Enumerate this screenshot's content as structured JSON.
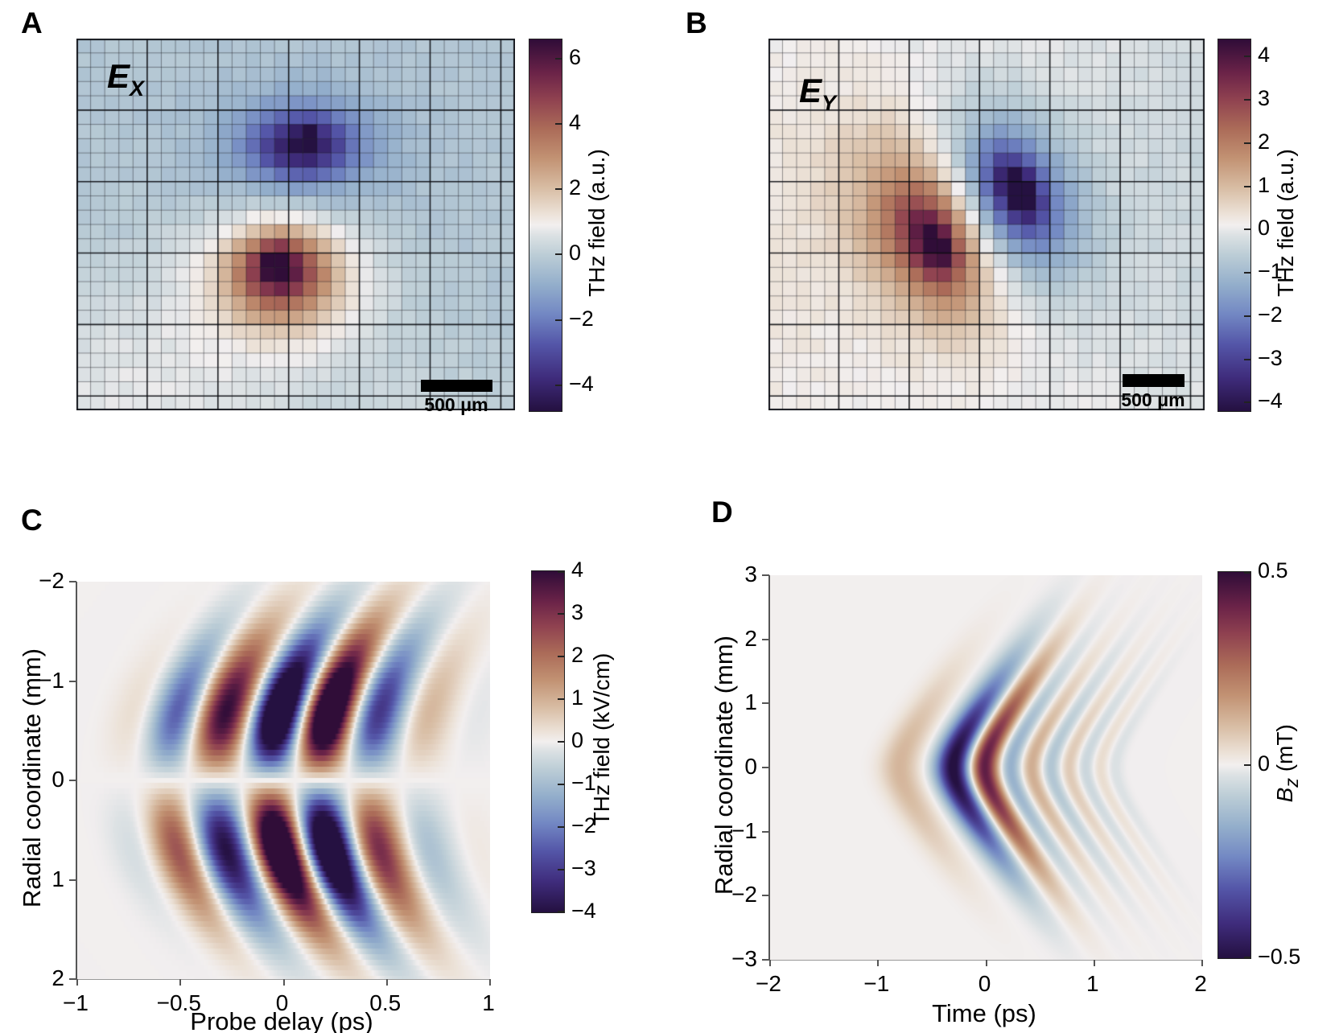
{
  "colormap": {
    "stops": [
      [
        0.0,
        "#241040"
      ],
      [
        0.09,
        "#3f2c7c"
      ],
      [
        0.18,
        "#5456a8"
      ],
      [
        0.26,
        "#7287c3"
      ],
      [
        0.34,
        "#93aecb"
      ],
      [
        0.42,
        "#bccdd6"
      ],
      [
        0.475,
        "#dde2e4"
      ],
      [
        0.5,
        "#f2efef"
      ],
      [
        0.53,
        "#ece2d8"
      ],
      [
        0.6,
        "#d8bda4"
      ],
      [
        0.68,
        "#c29273"
      ],
      [
        0.76,
        "#ab6b58"
      ],
      [
        0.84,
        "#8f4150"
      ],
      [
        0.91,
        "#6b2348"
      ],
      [
        1.0,
        "#2f0c38"
      ]
    ]
  },
  "chart_data": [
    {
      "id": "A",
      "panel_label": "A",
      "type": "heatmap",
      "title": {
        "main": "E",
        "sub": "X"
      },
      "scale_bar": {
        "label": "500 μm"
      },
      "colorbar": {
        "label": "THz field (a.u.)",
        "vmin": -4.8,
        "vmax": 6.6,
        "ticks": [
          6,
          4,
          2,
          0,
          -2,
          -4
        ],
        "tick_labels": [
          "6",
          "4",
          "2",
          "0",
          "−2",
          "−4"
        ]
      },
      "grid": {
        "cols": 31,
        "rows": 26
      },
      "field_model": {
        "type": "pixel-gaussians",
        "base": -0.22,
        "noise": 0.12,
        "blobs": [
          {
            "cx": 0.13,
            "cy": 0.97,
            "sx": 0.4,
            "sy": 0.34,
            "rot": 0,
            "amp": 0.95
          },
          {
            "cx": 0.8,
            "cy": 1.02,
            "sx": 0.3,
            "sy": 0.22,
            "rot": 0,
            "amp": 0.35
          },
          {
            "cx": 0.515,
            "cy": 0.3,
            "sx": 0.2,
            "sy": 0.16,
            "rot": 0,
            "amp": -1.6
          },
          {
            "cx": 0.515,
            "cy": 0.285,
            "sx": 0.105,
            "sy": 0.085,
            "rot": 0,
            "amp": -2.9
          },
          {
            "cx": 0.53,
            "cy": 0.26,
            "sx": 0.024,
            "sy": 0.02,
            "rot": 0,
            "amp": -1.3
          },
          {
            "cx": 0.47,
            "cy": 0.645,
            "sx": 0.19,
            "sy": 0.18,
            "rot": 0,
            "amp": 2.5
          },
          {
            "cx": 0.465,
            "cy": 0.625,
            "sx": 0.1,
            "sy": 0.105,
            "rot": 0,
            "amp": 3.5
          },
          {
            "cx": 0.455,
            "cy": 0.6,
            "sx": 0.04,
            "sy": 0.05,
            "rot": 0,
            "amp": 1.9
          }
        ]
      },
      "description": "Pixelated raster map of horizontal THz field component E_X: negative (blue/purple) lobe upper center, positive (orange/maroon) lobe lower center on pale blue-gray background."
    },
    {
      "id": "B",
      "panel_label": "B",
      "type": "heatmap",
      "title": {
        "main": "E",
        "sub": "Y"
      },
      "scale_bar": {
        "label": "500 μm"
      },
      "colorbar": {
        "label": "THz field (a.u.)",
        "vmin": -4.2,
        "vmax": 4.4,
        "ticks": [
          4,
          3,
          2,
          1,
          0,
          -1,
          -2,
          -3,
          -4
        ],
        "tick_labels": [
          "4",
          "3",
          "2",
          "1",
          "0",
          "−1",
          "−2",
          "−3",
          "−4"
        ]
      },
      "grid": {
        "cols": 31,
        "rows": 26
      },
      "field_model": {
        "type": "pixel-gaussians",
        "base": 0.06,
        "noise": 0.1,
        "blobs": [
          {
            "cx": 1.02,
            "cy": 0.4,
            "sx": 0.34,
            "sy": 0.6,
            "rot": 0,
            "amp": -0.45
          },
          {
            "cx": 0.02,
            "cy": 0.55,
            "sx": 0.2,
            "sy": 0.5,
            "rot": 0,
            "amp": 0.25
          },
          {
            "cx": 0.36,
            "cy": 0.52,
            "sx": 0.155,
            "sy": 0.27,
            "rot": 0.33,
            "amp": 2.0
          },
          {
            "cx": 0.375,
            "cy": 0.545,
            "sx": 0.08,
            "sy": 0.15,
            "rot": 0.33,
            "amp": 1.9
          },
          {
            "cx": 0.385,
            "cy": 0.55,
            "sx": 0.035,
            "sy": 0.065,
            "rot": 0.33,
            "amp": 1.5
          },
          {
            "cx": 0.565,
            "cy": 0.42,
            "sx": 0.15,
            "sy": 0.25,
            "rot": 0.33,
            "amp": -2.1
          },
          {
            "cx": 0.565,
            "cy": 0.415,
            "sx": 0.075,
            "sy": 0.135,
            "rot": 0.33,
            "amp": -1.9
          },
          {
            "cx": 0.575,
            "cy": 0.405,
            "sx": 0.032,
            "sy": 0.06,
            "rot": 0.33,
            "amp": -1.4
          }
        ]
      },
      "description": "Pixelated raster map of vertical THz field component E_Y: tilted positive (orange/maroon) lobe left of center and tilted negative (blue/purple) lobe right of center on light gray background."
    },
    {
      "id": "C",
      "panel_label": "C",
      "type": "heatmap",
      "axes": {
        "x": {
          "label": "Probe delay (ps)",
          "range": [
            -1,
            1
          ],
          "ticks": [
            -1,
            -0.5,
            0,
            0.5,
            1
          ],
          "tick_labels": [
            "−1",
            "−0.5",
            "0",
            "0.5",
            "1"
          ]
        },
        "y": {
          "label": "Radial coordinate (mm)",
          "range": [
            -2,
            2
          ],
          "ticks": [
            -2,
            -1,
            0,
            1,
            2
          ],
          "tick_labels": [
            "−2",
            "−1",
            "0",
            "1",
            "2"
          ]
        }
      },
      "colorbar": {
        "label": "THz field (kV/cm)",
        "vmin": -4,
        "vmax": 4,
        "ticks": [
          4,
          3,
          2,
          1,
          0,
          -1,
          -2,
          -3,
          -4
        ],
        "tick_labels": [
          "4",
          "3",
          "2",
          "1",
          "0",
          "−1",
          "−2",
          "−3",
          "−4"
        ]
      },
      "field_model": {
        "type": "mirrored-wave",
        "amp": 8.5,
        "r_step": 0.0556,
        "curve": 0.1,
        "carrier_period": 0.52,
        "carrier_t0": 0.055,
        "env_r": {
          "pow": 1.1,
          "sigma": 0.95,
          "gain": 1.9
        },
        "env_t": {
          "center": 0.05,
          "sigma": 0.45
        },
        "prepulse": {
          "center": -0.5,
          "sigma": 0.2,
          "gain": 0.28
        },
        "key_points": "Field ~0 on axis r=0; antisymmetric in r; oscillation period ~0.5 ps; strongest stripes between t=-0.2 and t=0.5 at |r|~0.5-1 mm; blue stripe at t~-0.1 for r<0 mirrored as orange for r>0."
      },
      "description": "Spatiotemporal THz field map: tilted alternating blue/orange stripes antisymmetric about r=0, white nodal line on axis."
    },
    {
      "id": "D",
      "panel_label": "D",
      "type": "heatmap",
      "axes": {
        "x": {
          "label": "Time (ps)",
          "range": [
            -2,
            2
          ],
          "ticks": [
            -2,
            -1,
            0,
            1,
            2
          ],
          "tick_labels": [
            "−2",
            "−1",
            "0",
            "1",
            "2"
          ]
        },
        "y": {
          "label": "Radial coordinate (mm)",
          "range": [
            3,
            -3
          ],
          "ticks": [
            3,
            2,
            1,
            0,
            -1,
            -2,
            -3
          ],
          "tick_labels": [
            "3",
            "2",
            "1",
            "0",
            "−1",
            "−2",
            "−3"
          ]
        }
      },
      "colorbar": {
        "label_parts": {
          "main": "B",
          "sub": "z",
          "rest": " (mT)"
        },
        "vmin": -0.5,
        "vmax": 0.5,
        "ticks": [
          0.5,
          0,
          -0.5
        ],
        "tick_labels": [
          "0.5",
          "0",
          "−0.5"
        ]
      },
      "field_model": {
        "type": "chevron-wave",
        "amp": 0.52,
        "delay_k": 0.42,
        "delay_z2": 0.2,
        "delay_z": 0.447,
        "radial_sigma": 1.5,
        "pulses": [
          [
            0.22,
            -0.8,
            0.18
          ],
          [
            -1.0,
            -0.3,
            0.165
          ],
          [
            0.88,
            -0.02,
            0.14
          ],
          [
            -0.34,
            0.22,
            0.115
          ],
          [
            0.27,
            0.42,
            0.105
          ],
          [
            -0.21,
            0.6,
            0.095
          ],
          [
            0.16,
            0.77,
            0.09
          ],
          [
            -0.12,
            0.92,
            0.085
          ],
          [
            0.09,
            1.06,
            0.08
          ],
          [
            -0.06,
            1.19,
            0.08
          ]
        ],
        "key_points": "Symmetric about r=0; dark blue minimum ~-0.5 mT at t~-0.3 ps on axis followed by maroon maximum ~+0.45 mT at t~0; left-pointing chevron wavefronts curving to later times at larger |r|; decaying ringing to t~1.3 ps."
      },
      "description": "Longitudinal magnetic field B_z map: strong blue/maroon bipolar pulse on axis with chevron-shaped wavefronts and decaying oscillations."
    }
  ]
}
